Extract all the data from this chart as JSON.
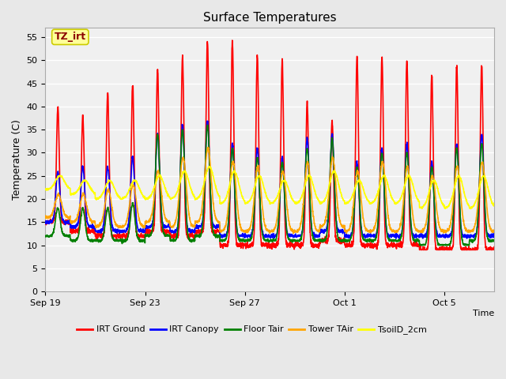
{
  "title": "Surface Temperatures",
  "xlabel": "Time",
  "ylabel": "Temperature (C)",
  "ylim": [
    0,
    57
  ],
  "yticks": [
    0,
    5,
    10,
    15,
    20,
    25,
    30,
    35,
    40,
    45,
    50,
    55
  ],
  "xtick_labels": [
    "Sep 19",
    "Sep 23",
    "Sep 27",
    "Oct 1",
    "Oct 5"
  ],
  "xtick_positions": [
    0,
    4,
    8,
    12,
    16
  ],
  "legend_entries": [
    "IRT Ground",
    "IRT Canopy",
    "Floor Tair",
    "Tower TAir",
    "TsoilD_2cm"
  ],
  "line_colors": [
    "red",
    "blue",
    "green",
    "orange",
    "yellow"
  ],
  "annotation_text": "TZ_irt",
  "annotation_bgcolor": "#FFFF99",
  "annotation_edgecolor": "#CCCC00",
  "background_color": "#E8E8E8",
  "plot_bg_color": "#F0F0F0",
  "grid_color": "white",
  "num_days": 18,
  "title_fontsize": 11,
  "label_fontsize": 9,
  "tick_fontsize": 8
}
